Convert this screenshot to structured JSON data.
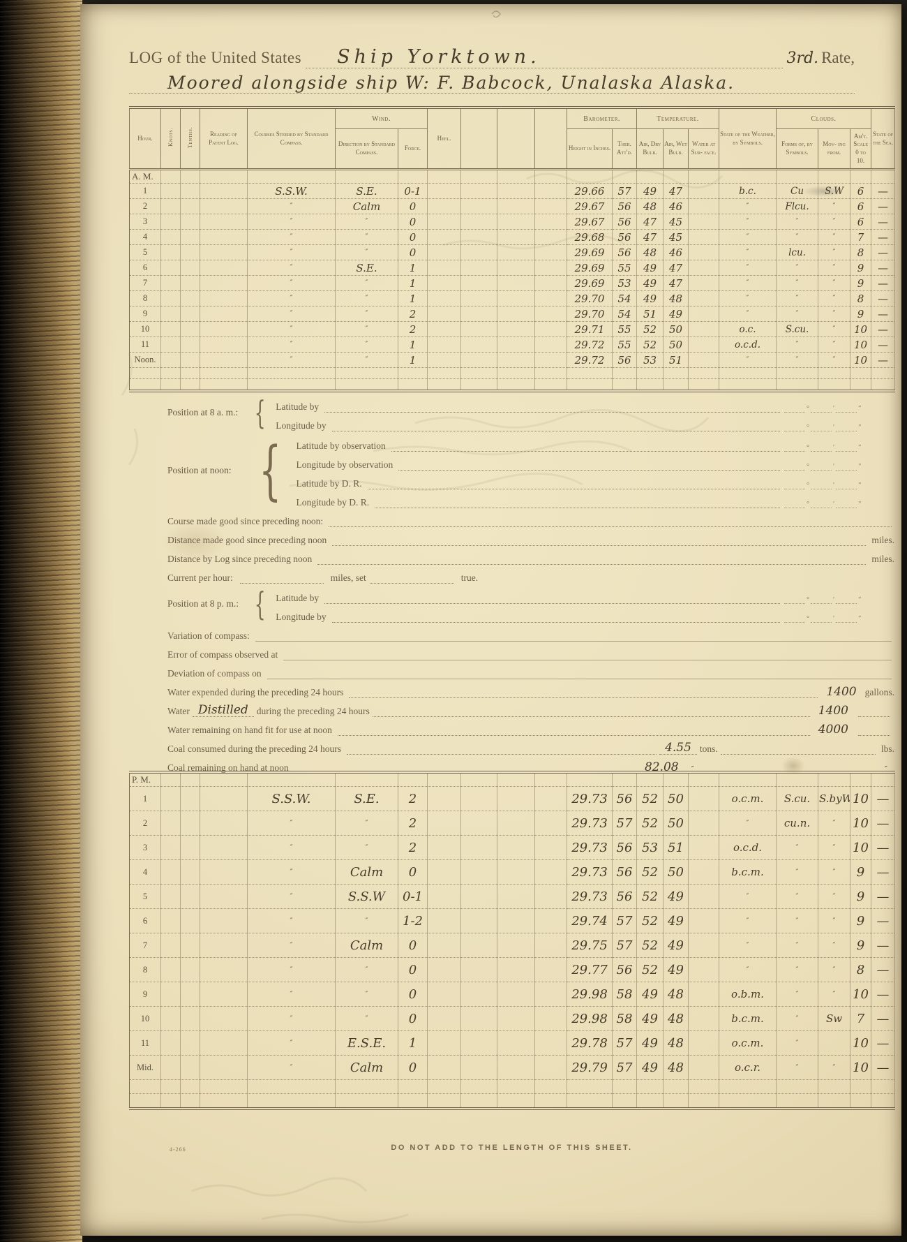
{
  "header": {
    "log_prefix": "LOG of the United States",
    "vessel": "Ship Yorktown.",
    "rate_hw": "3rd.",
    "rate_printed": "Rate,",
    "location": "Moored alongside ship W: F. Babcock, Unalaska Alaska."
  },
  "table": {
    "groups": {
      "wind": "Wind.",
      "barometer": "Barometer.",
      "temperature": "Temperature.",
      "clouds": "Clouds."
    },
    "columns": {
      "hour": "Hour.",
      "knots": "Knots.",
      "tenths": "Tenths.",
      "reading": "Reading of Patent Log.",
      "courses": "Courses Steered by Standard Compass.",
      "direction": "Direction by Standard Compass.",
      "force": "Force.",
      "heel": "Heel.",
      "height": "Height in Inches.",
      "ther": "Ther. Att'd.",
      "air_dry": "Air, Dry Bulb.",
      "air_wet": "Air, Wet Bulb.",
      "water_surface": "Water at Sur- face.",
      "weather": "State of the Weather, by Symbols.",
      "forms": "Forms of, by Symbols.",
      "moving": "Mov- ing from.",
      "amt": "Am't. Scale 0 to 10.",
      "sea": "State of the Sea."
    }
  },
  "sections": {
    "am": {
      "label": "A. M.",
      "rows": [
        [
          "1",
          "S.S.W.",
          "S.E.",
          "0-1",
          "29.66",
          "57",
          "49",
          "47",
          "b.c.",
          "Cu",
          "S.W",
          "6",
          "—"
        ],
        [
          "2",
          "″",
          "Calm",
          "0",
          "29.67",
          "56",
          "48",
          "46",
          "″",
          "Flcu.",
          "″",
          "6",
          "—"
        ],
        [
          "3",
          "″",
          "″",
          "0",
          "29.67",
          "56",
          "47",
          "45",
          "″",
          "″",
          "″",
          "6",
          "—"
        ],
        [
          "4",
          "″",
          "″",
          "0",
          "29.68",
          "56",
          "47",
          "45",
          "″",
          "″",
          "″",
          "7",
          "—"
        ],
        [
          "5",
          "″",
          "″",
          "0",
          "29.69",
          "56",
          "48",
          "46",
          "″",
          "lcu.",
          "″",
          "8",
          "—"
        ],
        [
          "6",
          "″",
          "S.E.",
          "1",
          "29.69",
          "55",
          "49",
          "47",
          "″",
          "″",
          "″",
          "9",
          "—"
        ],
        [
          "7",
          "″",
          "″",
          "1",
          "29.69",
          "53",
          "49",
          "47",
          "″",
          "″",
          "″",
          "9",
          "—"
        ],
        [
          "8",
          "″",
          "″",
          "1",
          "29.70",
          "54",
          "49",
          "48",
          "″",
          "″",
          "″",
          "8",
          "—"
        ],
        [
          "9",
          "″",
          "″",
          "2",
          "29.70",
          "54",
          "51",
          "49",
          "″",
          "″",
          "″",
          "9",
          "—"
        ],
        [
          "10",
          "″",
          "″",
          "2",
          "29.71",
          "55",
          "52",
          "50",
          "o.c.",
          "S.cu.",
          "″",
          "10",
          "—"
        ],
        [
          "11",
          "″",
          "″",
          "1",
          "29.72",
          "55",
          "52",
          "50",
          "o.c.d.",
          "″",
          "″",
          "10",
          "—"
        ],
        [
          "Noon.",
          "″",
          "″",
          "1",
          "29.72",
          "56",
          "53",
          "51",
          "″",
          "″",
          "″",
          "10",
          "—"
        ]
      ]
    },
    "pm": {
      "label": "P. M.",
      "rows": [
        [
          "1",
          "S.S.W.",
          "S.E.",
          "2",
          "29.73",
          "56",
          "52",
          "50",
          "o.c.m.",
          "S.cu.",
          "S.byW",
          "10",
          "—"
        ],
        [
          "2",
          "″",
          "″",
          "2",
          "29.73",
          "57",
          "52",
          "50",
          "″",
          "cu.n.",
          "″",
          "10",
          "—"
        ],
        [
          "3",
          "″",
          "″",
          "2",
          "29.73",
          "56",
          "53",
          "51",
          "o.c.d.",
          "″",
          "″",
          "10",
          "—"
        ],
        [
          "4",
          "″",
          "Calm",
          "0",
          "29.73",
          "56",
          "52",
          "50",
          "b.c.m.",
          "″",
          "″",
          "9",
          "—"
        ],
        [
          "5",
          "″",
          "S.S.W",
          "0-1",
          "29.73",
          "56",
          "52",
          "49",
          "″",
          "″",
          "″",
          "9",
          "—"
        ],
        [
          "6",
          "″",
          "″",
          "1-2",
          "29.74",
          "57",
          "52",
          "49",
          "″",
          "″",
          "″",
          "9",
          "—"
        ],
        [
          "7",
          "″",
          "Calm",
          "0",
          "29.75",
          "57",
          "52",
          "49",
          "″",
          "″",
          "″",
          "9",
          "—"
        ],
        [
          "8",
          "″",
          "″",
          "0",
          "29.77",
          "56",
          "52",
          "49",
          "″",
          "″",
          "″",
          "8",
          "—"
        ],
        [
          "9",
          "″",
          "″",
          "0",
          "29.98",
          "58",
          "49",
          "48",
          "o.b.m.",
          "″",
          "″",
          "10",
          "—"
        ],
        [
          "10",
          "″",
          "″",
          "0",
          "29.98",
          "58",
          "49",
          "48",
          "b.c.m.",
          "″",
          "Sw",
          "7",
          "—"
        ],
        [
          "11",
          "″",
          "E.S.E.",
          "1",
          "29.78",
          "57",
          "49",
          "48",
          "o.c.m.",
          "″",
          "",
          "10",
          "—"
        ],
        [
          "Mid.",
          "″",
          "Calm",
          "0",
          "29.79",
          "57",
          "49",
          "48",
          "o.c.r.",
          "″",
          "″",
          "10",
          "—"
        ]
      ]
    }
  },
  "form": {
    "position_8am": "Position at 8 a. m.:",
    "latitude_by": "Latitude by",
    "longitude_by": "Longitude by",
    "position_noon": "Position at noon:",
    "latitude_by_observation": "Latitude by observation",
    "longitude_by_observation": "Longitude by observation",
    "latitude_by_dr": "Latitude by D. R.",
    "longitude_by_dr": "Longitude by D. R.",
    "course_made_good": "Course made good since preceding noon:",
    "distance_made_good": "Distance made good since preceding noon",
    "distance_by_log": "Distance by Log since preceding noon",
    "current_per_hour": "Current per hour:",
    "miles_set": "miles, set",
    "true_label": "true.",
    "position_8pm": "Position at 8 p. m.:",
    "variation_of_compass": "Variation of compass:",
    "error_of_compass": "Error of compass observed at",
    "deviation_of_compass": "Deviation of compass on",
    "water_expended": "Water expended during the preceding 24 hours",
    "water_word": "Water",
    "during_24": "during the preceding 24 hours",
    "water_remaining": "Water remaining on hand fit for use at noon",
    "coal_consumed": "Coal consumed during the preceding 24 hours",
    "coal_remaining": "Coal remaining on hand at noon",
    "miles_unit": "miles.",
    "gallons_unit": "gallons.",
    "tons_unit": "tons.",
    "lbs_unit": "lbs.",
    "values": {
      "water_expended": "1400",
      "water_distilled_word": "Distilled",
      "water_distilled": "1400",
      "water_remaining": "4000",
      "coal_consumed": "4.55",
      "coal_remaining": "82.08",
      "coal_ditto": "″"
    }
  },
  "marks": {
    "deg": "°",
    "min": "′",
    "sec": "″",
    "brace": "{"
  },
  "footer": {
    "form_number": "4-266",
    "instruction": "DO NOT ADD TO THE LENGTH OF THIS SHEET."
  }
}
